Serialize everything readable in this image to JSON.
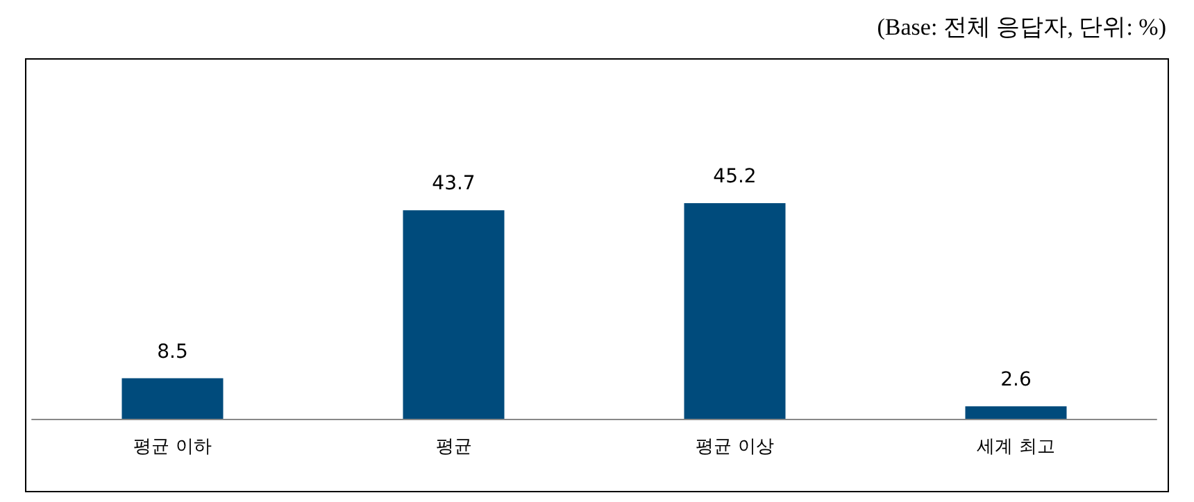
{
  "chart_data": {
    "type": "bar",
    "categories": [
      "평균 이하",
      "평균",
      "평균 이상",
      "세계 최고"
    ],
    "values": [
      8.5,
      43.7,
      45.2,
      2.6
    ],
    "color": "#004b7c",
    "data_labels": true,
    "annotations": [
      "(Base: 전체 응답자, 단위: %)"
    ]
  }
}
